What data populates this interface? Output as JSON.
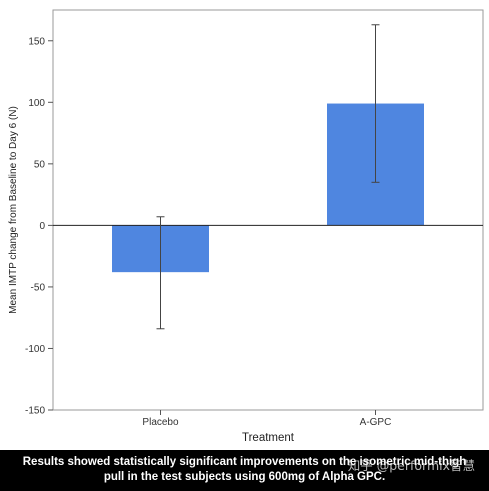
{
  "chart_data": {
    "type": "bar",
    "title": "",
    "xlabel": "Treatment",
    "ylabel": "Mean IMTP change from Baseline to Day 6 (N)",
    "ylim": [
      -150,
      175
    ],
    "yticks": [
      150,
      100,
      50,
      0,
      -50,
      -100,
      -150
    ],
    "categories": [
      "Placebo",
      "A-GPC"
    ],
    "values": [
      -38,
      99
    ],
    "error_low": [
      -84,
      35
    ],
    "error_high": [
      7,
      163
    ],
    "bar_color": "#4f86e0",
    "grid": false,
    "legend": "none"
  },
  "caption": {
    "line1": "Results showed statistically significant improvements on the isometric mid-thigh",
    "line2": "pull in the test subjects using 600mg of Alpha GPC."
  },
  "watermark": "知乎 @performix智慧"
}
